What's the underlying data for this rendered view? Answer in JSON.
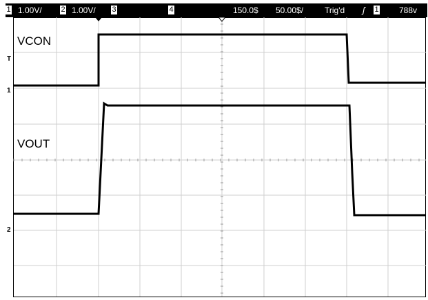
{
  "status": {
    "ch1_num": "1",
    "ch1_scale": "1.00V/",
    "ch2_num": "2",
    "ch2_scale": "1.00V/",
    "ch3_num": "3",
    "ch4_num": "4",
    "delay": "150.0$",
    "timebase": "50.00$/",
    "trigger_state": "Trig'd",
    "trigger_edge_icon": "rising-edge-icon",
    "trig_source_num": "1",
    "trig_level": "788v"
  },
  "labels": {
    "vcon": "VCON",
    "vout": "VOUT"
  },
  "markers": {
    "t": "T",
    "ch1": "1",
    "ch2": "2"
  },
  "colors": {
    "trace": "#000000",
    "grid": "#cfcfcf",
    "background": "#ffffff"
  }
}
